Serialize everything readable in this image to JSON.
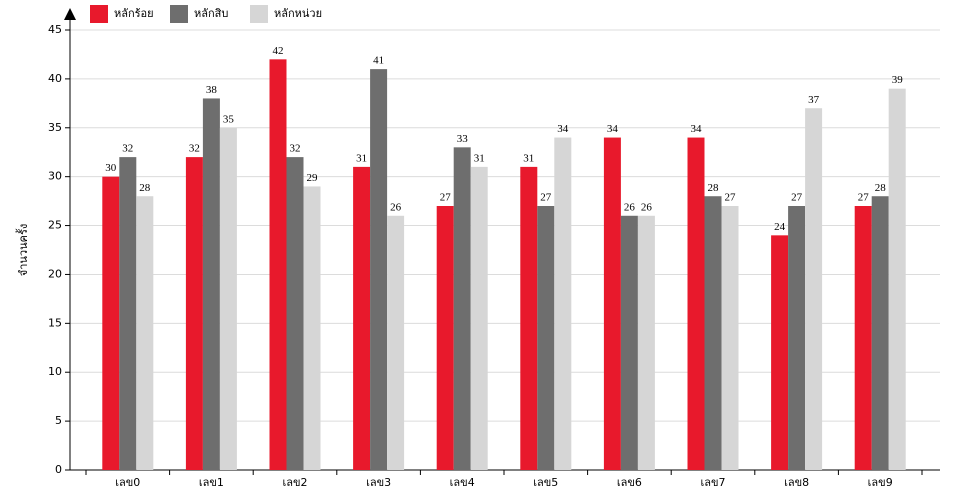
{
  "chart_data": {
    "type": "bar",
    "y_label": "จำนวนครั้ง",
    "categories": [
      "เลข0",
      "เลข1",
      "เลข2",
      "เลข3",
      "เลข4",
      "เลข5",
      "เลข6",
      "เลข7",
      "เลข8",
      "เลข9"
    ],
    "series": [
      {
        "name": "หลักร้อย",
        "color": "#e8192c",
        "values": [
          30,
          32,
          42,
          31,
          27,
          31,
          34,
          34,
          24,
          27
        ]
      },
      {
        "name": "หลักสิบ",
        "color": "#6e6e6e",
        "values": [
          32,
          38,
          32,
          41,
          33,
          27,
          26,
          28,
          27,
          28
        ]
      },
      {
        "name": "หลักหน่วย",
        "color": "#d6d6d6",
        "values": [
          28,
          35,
          29,
          26,
          31,
          34,
          26,
          27,
          37,
          39
        ]
      }
    ],
    "ylim": [
      0,
      45
    ],
    "yticks": [
      0,
      5,
      10,
      15,
      20,
      25,
      30,
      35,
      40,
      45
    ],
    "grid": true
  }
}
